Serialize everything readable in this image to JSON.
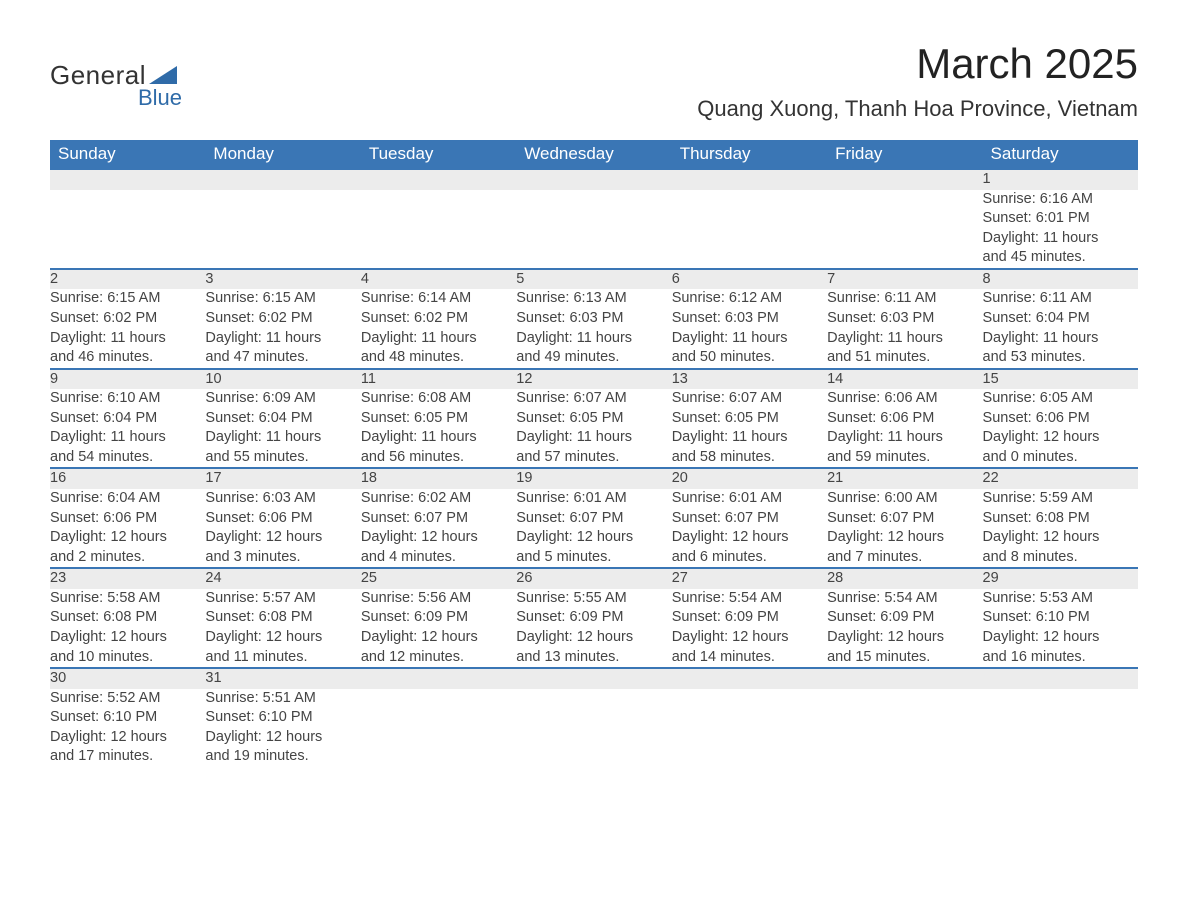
{
  "logo": {
    "line1": "General",
    "line2": "Blue"
  },
  "title": "March 2025",
  "location": "Quang Xuong, Thanh Hoa Province, Vietnam",
  "colors": {
    "header_bg": "#3a76b5",
    "header_text": "#ffffff",
    "daynum_bg": "#ececec",
    "row_border": "#3a76b5",
    "text": "#444444",
    "logo_blue": "#2f6ba8"
  },
  "typography": {
    "title_fontsize": 42,
    "location_fontsize": 22,
    "header_fontsize": 17,
    "cell_fontsize": 14.5,
    "daynum_fontsize": 16
  },
  "weekdays": [
    "Sunday",
    "Monday",
    "Tuesday",
    "Wednesday",
    "Thursday",
    "Friday",
    "Saturday"
  ],
  "calendar": {
    "type": "table",
    "first_weekday_index": 6,
    "weeks": [
      [
        null,
        null,
        null,
        null,
        null,
        null,
        {
          "n": "1",
          "sunrise": "Sunrise: 6:16 AM",
          "sunset": "Sunset: 6:01 PM",
          "dl1": "Daylight: 11 hours",
          "dl2": "and 45 minutes."
        }
      ],
      [
        {
          "n": "2",
          "sunrise": "Sunrise: 6:15 AM",
          "sunset": "Sunset: 6:02 PM",
          "dl1": "Daylight: 11 hours",
          "dl2": "and 46 minutes."
        },
        {
          "n": "3",
          "sunrise": "Sunrise: 6:15 AM",
          "sunset": "Sunset: 6:02 PM",
          "dl1": "Daylight: 11 hours",
          "dl2": "and 47 minutes."
        },
        {
          "n": "4",
          "sunrise": "Sunrise: 6:14 AM",
          "sunset": "Sunset: 6:02 PM",
          "dl1": "Daylight: 11 hours",
          "dl2": "and 48 minutes."
        },
        {
          "n": "5",
          "sunrise": "Sunrise: 6:13 AM",
          "sunset": "Sunset: 6:03 PM",
          "dl1": "Daylight: 11 hours",
          "dl2": "and 49 minutes."
        },
        {
          "n": "6",
          "sunrise": "Sunrise: 6:12 AM",
          "sunset": "Sunset: 6:03 PM",
          "dl1": "Daylight: 11 hours",
          "dl2": "and 50 minutes."
        },
        {
          "n": "7",
          "sunrise": "Sunrise: 6:11 AM",
          "sunset": "Sunset: 6:03 PM",
          "dl1": "Daylight: 11 hours",
          "dl2": "and 51 minutes."
        },
        {
          "n": "8",
          "sunrise": "Sunrise: 6:11 AM",
          "sunset": "Sunset: 6:04 PM",
          "dl1": "Daylight: 11 hours",
          "dl2": "and 53 minutes."
        }
      ],
      [
        {
          "n": "9",
          "sunrise": "Sunrise: 6:10 AM",
          "sunset": "Sunset: 6:04 PM",
          "dl1": "Daylight: 11 hours",
          "dl2": "and 54 minutes."
        },
        {
          "n": "10",
          "sunrise": "Sunrise: 6:09 AM",
          "sunset": "Sunset: 6:04 PM",
          "dl1": "Daylight: 11 hours",
          "dl2": "and 55 minutes."
        },
        {
          "n": "11",
          "sunrise": "Sunrise: 6:08 AM",
          "sunset": "Sunset: 6:05 PM",
          "dl1": "Daylight: 11 hours",
          "dl2": "and 56 minutes."
        },
        {
          "n": "12",
          "sunrise": "Sunrise: 6:07 AM",
          "sunset": "Sunset: 6:05 PM",
          "dl1": "Daylight: 11 hours",
          "dl2": "and 57 minutes."
        },
        {
          "n": "13",
          "sunrise": "Sunrise: 6:07 AM",
          "sunset": "Sunset: 6:05 PM",
          "dl1": "Daylight: 11 hours",
          "dl2": "and 58 minutes."
        },
        {
          "n": "14",
          "sunrise": "Sunrise: 6:06 AM",
          "sunset": "Sunset: 6:06 PM",
          "dl1": "Daylight: 11 hours",
          "dl2": "and 59 minutes."
        },
        {
          "n": "15",
          "sunrise": "Sunrise: 6:05 AM",
          "sunset": "Sunset: 6:06 PM",
          "dl1": "Daylight: 12 hours",
          "dl2": "and 0 minutes."
        }
      ],
      [
        {
          "n": "16",
          "sunrise": "Sunrise: 6:04 AM",
          "sunset": "Sunset: 6:06 PM",
          "dl1": "Daylight: 12 hours",
          "dl2": "and 2 minutes."
        },
        {
          "n": "17",
          "sunrise": "Sunrise: 6:03 AM",
          "sunset": "Sunset: 6:06 PM",
          "dl1": "Daylight: 12 hours",
          "dl2": "and 3 minutes."
        },
        {
          "n": "18",
          "sunrise": "Sunrise: 6:02 AM",
          "sunset": "Sunset: 6:07 PM",
          "dl1": "Daylight: 12 hours",
          "dl2": "and 4 minutes."
        },
        {
          "n": "19",
          "sunrise": "Sunrise: 6:01 AM",
          "sunset": "Sunset: 6:07 PM",
          "dl1": "Daylight: 12 hours",
          "dl2": "and 5 minutes."
        },
        {
          "n": "20",
          "sunrise": "Sunrise: 6:01 AM",
          "sunset": "Sunset: 6:07 PM",
          "dl1": "Daylight: 12 hours",
          "dl2": "and 6 minutes."
        },
        {
          "n": "21",
          "sunrise": "Sunrise: 6:00 AM",
          "sunset": "Sunset: 6:07 PM",
          "dl1": "Daylight: 12 hours",
          "dl2": "and 7 minutes."
        },
        {
          "n": "22",
          "sunrise": "Sunrise: 5:59 AM",
          "sunset": "Sunset: 6:08 PM",
          "dl1": "Daylight: 12 hours",
          "dl2": "and 8 minutes."
        }
      ],
      [
        {
          "n": "23",
          "sunrise": "Sunrise: 5:58 AM",
          "sunset": "Sunset: 6:08 PM",
          "dl1": "Daylight: 12 hours",
          "dl2": "and 10 minutes."
        },
        {
          "n": "24",
          "sunrise": "Sunrise: 5:57 AM",
          "sunset": "Sunset: 6:08 PM",
          "dl1": "Daylight: 12 hours",
          "dl2": "and 11 minutes."
        },
        {
          "n": "25",
          "sunrise": "Sunrise: 5:56 AM",
          "sunset": "Sunset: 6:09 PM",
          "dl1": "Daylight: 12 hours",
          "dl2": "and 12 minutes."
        },
        {
          "n": "26",
          "sunrise": "Sunrise: 5:55 AM",
          "sunset": "Sunset: 6:09 PM",
          "dl1": "Daylight: 12 hours",
          "dl2": "and 13 minutes."
        },
        {
          "n": "27",
          "sunrise": "Sunrise: 5:54 AM",
          "sunset": "Sunset: 6:09 PM",
          "dl1": "Daylight: 12 hours",
          "dl2": "and 14 minutes."
        },
        {
          "n": "28",
          "sunrise": "Sunrise: 5:54 AM",
          "sunset": "Sunset: 6:09 PM",
          "dl1": "Daylight: 12 hours",
          "dl2": "and 15 minutes."
        },
        {
          "n": "29",
          "sunrise": "Sunrise: 5:53 AM",
          "sunset": "Sunset: 6:10 PM",
          "dl1": "Daylight: 12 hours",
          "dl2": "and 16 minutes."
        }
      ],
      [
        {
          "n": "30",
          "sunrise": "Sunrise: 5:52 AM",
          "sunset": "Sunset: 6:10 PM",
          "dl1": "Daylight: 12 hours",
          "dl2": "and 17 minutes."
        },
        {
          "n": "31",
          "sunrise": "Sunrise: 5:51 AM",
          "sunset": "Sunset: 6:10 PM",
          "dl1": "Daylight: 12 hours",
          "dl2": "and 19 minutes."
        },
        null,
        null,
        null,
        null,
        null
      ]
    ]
  }
}
